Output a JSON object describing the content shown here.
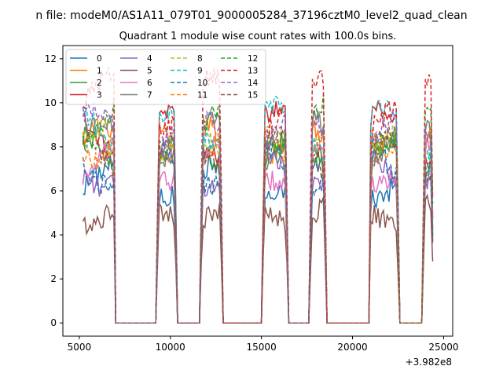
{
  "suptitle": "n file: modeM0/AS1A11_079T01_9000005284_37196cztM0_level2_quad_clean",
  "chart_data": {
    "type": "line",
    "title": "Quadrant 1 module wise count rates with 100.0s bins.",
    "xlabel": "",
    "ylabel": "",
    "x_offset_label": "+3.982e8",
    "xlim": [
      4100,
      25500
    ],
    "ylim": [
      -0.6,
      12.6
    ],
    "xticks": [
      5000,
      10000,
      15000,
      20000,
      25000
    ],
    "yticks": [
      0,
      2,
      4,
      6,
      8,
      10,
      12
    ],
    "grid": false,
    "legend": {
      "placement": "top-left",
      "columns": 4
    },
    "segments": [
      {
        "start": 5200,
        "end": 6950,
        "note": "active"
      },
      {
        "start": 9300,
        "end": 10300,
        "note": "active"
      },
      {
        "start": 11700,
        "end": 12800,
        "note": "active"
      },
      {
        "start": 15100,
        "end": 16400,
        "note": "active"
      },
      {
        "start": 17700,
        "end": 18500,
        "note": "active"
      },
      {
        "start": 20950,
        "end": 22500,
        "note": "active"
      },
      {
        "start": 23900,
        "end": 24400,
        "note": "active"
      }
    ],
    "series": [
      {
        "name": "0",
        "color": "#1f77b4",
        "dashed": false,
        "level": 6.5
      },
      {
        "name": "1",
        "color": "#ff7f0e",
        "dashed": false,
        "level": 8.0
      },
      {
        "name": "2",
        "color": "#2ca02c",
        "dashed": false,
        "level": 7.5
      },
      {
        "name": "3",
        "color": "#d62728",
        "dashed": false,
        "level": 8.6
      },
      {
        "name": "4",
        "color": "#9467bd",
        "dashed": false,
        "level": 7.0
      },
      {
        "name": "5",
        "color": "#8c564b",
        "dashed": false,
        "level": 5.1
      },
      {
        "name": "6",
        "color": "#e377c2",
        "dashed": false,
        "level": 7.3
      },
      {
        "name": "7",
        "color": "#7f7f7f",
        "dashed": false,
        "level": 8.2
      },
      {
        "name": "8",
        "color": "#bcbd22",
        "dashed": true,
        "level": 7.8
      },
      {
        "name": "9",
        "color": "#17becf",
        "dashed": true,
        "level": 8.8
      },
      {
        "name": "10",
        "color": "#1f77b4",
        "dashed": true,
        "level": 7.1
      },
      {
        "name": "11",
        "color": "#ff7f0e",
        "dashed": true,
        "level": 8.4
      },
      {
        "name": "12",
        "color": "#2ca02c",
        "dashed": true,
        "level": 9.0
      },
      {
        "name": "13",
        "color": "#d62728",
        "dashed": true,
        "level": 10.0
      },
      {
        "name": "14",
        "color": "#9467bd",
        "dashed": true,
        "level": 8.6
      },
      {
        "name": "15",
        "color": "#8c564b",
        "dashed": true,
        "level": 7.6
      }
    ]
  }
}
